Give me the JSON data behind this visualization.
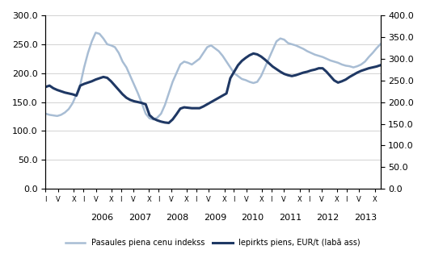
{
  "title": "",
  "left_ylim": [
    0,
    300
  ],
  "right_ylim": [
    0,
    400
  ],
  "left_yticks": [
    0,
    50,
    100,
    150,
    200,
    250,
    300
  ],
  "right_yticks": [
    0,
    50,
    100,
    150,
    200,
    250,
    300,
    350,
    400
  ],
  "left_yticklabels": [
    "0.0",
    "50.0",
    "100.0",
    "150.0",
    "200.0",
    "250.0",
    "300.0"
  ],
  "right_yticklabels": [
    "0.0",
    "50.0",
    "100.0",
    "150.0",
    "200.0",
    "250.0",
    "300.0",
    "350.0",
    "400.0"
  ],
  "legend1": "Pasaules piena cenu indekss",
  "legend2": "Iepirkts piens, EUR/t (labā ass)",
  "color1": "#a8bdd4",
  "color2": "#1f3864",
  "linewidth1": 1.8,
  "linewidth2": 2.2,
  "background_color": "#ffffff",
  "grid_color": "#c0c0c0",
  "x_year_labels": [
    2006,
    2007,
    2008,
    2009,
    2010,
    2011,
    2012,
    2013
  ],
  "series1": [
    130,
    128,
    127,
    126,
    128,
    132,
    138,
    148,
    163,
    180,
    210,
    235,
    255,
    270,
    268,
    260,
    250,
    248,
    245,
    235,
    220,
    210,
    195,
    180,
    165,
    148,
    130,
    122,
    120,
    123,
    130,
    145,
    165,
    185,
    200,
    215,
    220,
    218,
    215,
    220,
    225,
    235,
    245,
    248,
    243,
    238,
    230,
    220,
    210,
    200,
    195,
    190,
    188,
    185,
    183,
    185,
    195,
    210,
    225,
    240,
    255,
    260,
    258,
    252,
    250,
    248,
    245,
    242,
    238,
    235,
    232,
    230,
    228,
    225,
    222,
    220,
    218,
    215,
    213,
    212,
    210,
    212,
    215,
    220,
    228,
    235,
    243,
    250
  ],
  "series2": [
    235,
    238,
    232,
    228,
    225,
    222,
    220,
    218,
    215,
    238,
    242,
    245,
    248,
    252,
    255,
    258,
    256,
    248,
    238,
    228,
    218,
    210,
    205,
    202,
    200,
    198,
    195,
    170,
    162,
    158,
    155,
    153,
    152,
    160,
    172,
    185,
    188,
    187,
    186,
    186,
    186,
    190,
    195,
    200,
    205,
    210,
    215,
    220,
    255,
    270,
    285,
    295,
    302,
    308,
    312,
    310,
    305,
    298,
    290,
    282,
    276,
    270,
    265,
    262,
    260,
    262,
    265,
    268,
    270,
    273,
    275,
    278,
    278,
    270,
    260,
    250,
    245,
    248,
    252,
    258,
    263,
    268,
    272,
    275,
    278,
    280,
    282,
    285
  ],
  "tick_labels_per_year": [
    "I",
    "V",
    "X"
  ],
  "n_years": 9,
  "start_year": 2005,
  "end_year": 2013,
  "fontsize": 8,
  "figsize": [
    5.27,
    3.15
  ],
  "dpi": 100
}
